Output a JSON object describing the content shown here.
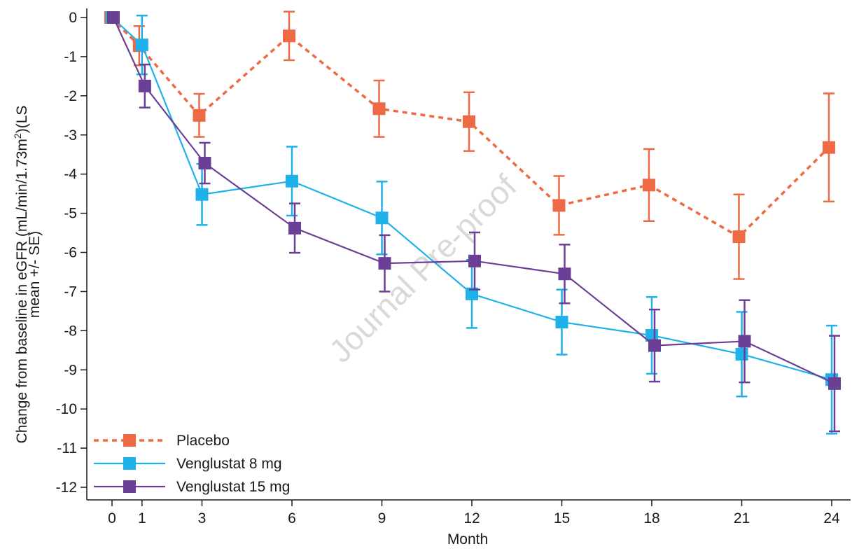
{
  "colors": {
    "placebo": "#ED6A45",
    "v8": "#1EB1EA",
    "v15": "#6C3F96",
    "axis": "#1a1a1a",
    "watermark": "#d8d8d8"
  },
  "watermark": "Journal Pre-proof",
  "chart_data": {
    "type": "line",
    "xlabel": "Month",
    "ylabel_line1": "Change from baseline in eGFR (mL/min/1.73m",
    "ylabel_sup": "2",
    "ylabel_line1_end": ")(LS",
    "ylabel_line2": "mean +/- SE)",
    "x_ticks": [
      0,
      1,
      3,
      6,
      9,
      12,
      15,
      18,
      21,
      24
    ],
    "x_tick_labels": [
      "0",
      "1",
      "3",
      "6",
      "9",
      "12",
      "15",
      "18",
      "21",
      "24"
    ],
    "y_ticks": [
      0,
      -1,
      -2,
      -3,
      -4,
      -5,
      -6,
      -7,
      -8,
      -9,
      -10,
      -11,
      -12
    ],
    "y_tick_labels": [
      "0",
      "-1",
      "-2",
      "-3",
      "-4",
      "-5",
      "-6",
      "-7",
      "-8",
      "-9",
      "-10",
      "-11",
      "-12"
    ],
    "xlim": [
      -1,
      24.6
    ],
    "ylim": [
      -12.4,
      0.3
    ],
    "legend_position": "bottom-left",
    "series": [
      {
        "name": "Placebo",
        "key": "placebo",
        "style": "dashed",
        "x_offset": -0.2,
        "x": [
          0,
          1,
          3,
          6,
          9,
          12,
          15,
          18,
          21,
          24
        ],
        "y": [
          0,
          -0.72,
          -2.5,
          -0.47,
          -2.33,
          -2.66,
          -4.8,
          -4.28,
          -5.6,
          -3.32
        ],
        "err": [
          0,
          0.5,
          0.55,
          0.62,
          0.72,
          0.75,
          0.75,
          0.92,
          1.08,
          1.38
        ]
      },
      {
        "name": "Venglustat 8 mg",
        "key": "v8",
        "style": "solid",
        "x_offset": 0,
        "x": [
          0,
          1,
          3,
          6,
          9,
          12,
          15,
          18,
          21,
          24
        ],
        "y": [
          0,
          -0.7,
          -4.52,
          -4.18,
          -5.12,
          -7.06,
          -7.78,
          -8.12,
          -8.6,
          -9.25
        ],
        "err": [
          0,
          0.75,
          0.78,
          0.88,
          0.93,
          0.87,
          0.83,
          0.98,
          1.08,
          1.38
        ]
      },
      {
        "name": "Venglustat 15 mg",
        "key": "v15",
        "style": "solid",
        "x_offset": 0.2,
        "x": [
          0,
          1,
          3,
          6,
          9,
          12,
          15,
          18,
          21,
          24
        ],
        "y": [
          0,
          -1.75,
          -3.72,
          -5.38,
          -6.28,
          -6.22,
          -6.55,
          -8.38,
          -8.27,
          -9.35
        ],
        "err": [
          0,
          0.55,
          0.52,
          0.63,
          0.72,
          0.73,
          0.75,
          0.92,
          1.05,
          1.22
        ]
      }
    ]
  }
}
